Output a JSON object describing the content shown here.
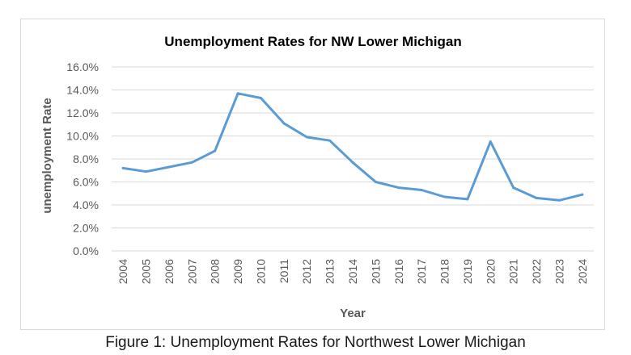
{
  "caption": "Figure 1: Unemployment Rates for Northwest Lower Michigan",
  "colors": {
    "line": "#5b9bd5",
    "grid": "#d9d9d9",
    "text": "#595959",
    "frame": "#d9d9d9"
  },
  "chart_data": {
    "type": "line",
    "title": "Unemployment Rates for NW Lower Michigan",
    "xlabel": "Year",
    "ylabel": "unemployment Rate",
    "ylim": [
      0,
      16
    ],
    "grid": true,
    "legend": false,
    "y_ticks": [
      "0.0%",
      "2.0%",
      "4.0%",
      "6.0%",
      "8.0%",
      "10.0%",
      "12.0%",
      "14.0%",
      "16.0%"
    ],
    "categories": [
      "2004",
      "2005",
      "2006",
      "2007",
      "2008",
      "2009",
      "2010",
      "2011",
      "2012",
      "2013",
      "2014",
      "2015",
      "2016",
      "2017",
      "2018",
      "2019",
      "2020",
      "2021",
      "2022",
      "2023",
      "2024"
    ],
    "series": [
      {
        "values": [
          7.2,
          6.9,
          7.3,
          7.7,
          8.7,
          13.7,
          13.3,
          11.1,
          9.9,
          9.6,
          7.7,
          6.0,
          5.5,
          5.3,
          4.7,
          4.5,
          9.5,
          5.5,
          4.6,
          4.4,
          4.9
        ]
      }
    ]
  }
}
